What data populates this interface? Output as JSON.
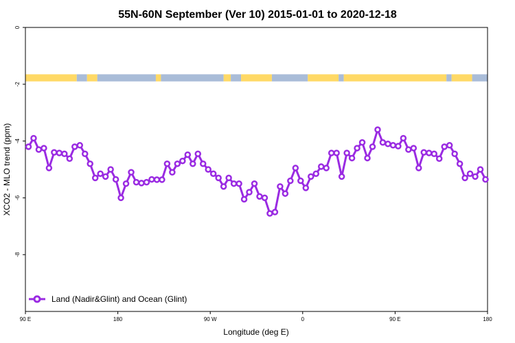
{
  "chart_data": {
    "type": "line",
    "title": "55N-60N September (Ver 10)   2015-01-01 to 2020-12-18",
    "xlabel": "Longitude (deg E)",
    "ylabel": "XCO2 - MLO trend (ppm)",
    "xlim": [
      90,
      540
    ],
    "ylim": [
      -10,
      0
    ],
    "x_ticks": [
      {
        "value": 90,
        "label": "90 E"
      },
      {
        "value": 180,
        "label": "180"
      },
      {
        "value": 270,
        "label": "90 W"
      },
      {
        "value": 360,
        "label": "0"
      },
      {
        "value": 450,
        "label": "90 E"
      },
      {
        "value": 540,
        "label": "180"
      }
    ],
    "y_ticks": [
      {
        "value": 0,
        "label": "0"
      },
      {
        "value": -2,
        "label": "-2"
      },
      {
        "value": -4,
        "label": "-4"
      },
      {
        "value": -6,
        "label": "-6"
      },
      {
        "value": -8,
        "label": "-8"
      }
    ],
    "grid": false,
    "legend_position": "bottom-left",
    "land_ocean_band": {
      "y_range": [
        -1.65,
        -1.9
      ],
      "land_color": "#ffd966",
      "ocean_color": "#a9bcd8",
      "segments": [
        {
          "from": 90,
          "to": 140,
          "kind": "land"
        },
        {
          "from": 140,
          "to": 150,
          "kind": "ocean"
        },
        {
          "from": 150,
          "to": 160,
          "kind": "land"
        },
        {
          "from": 160,
          "to": 217,
          "kind": "ocean"
        },
        {
          "from": 217,
          "to": 222,
          "kind": "land"
        },
        {
          "from": 222,
          "to": 283,
          "kind": "ocean"
        },
        {
          "from": 283,
          "to": 290,
          "kind": "land"
        },
        {
          "from": 290,
          "to": 300,
          "kind": "ocean"
        },
        {
          "from": 300,
          "to": 330,
          "kind": "land"
        },
        {
          "from": 330,
          "to": 365,
          "kind": "ocean"
        },
        {
          "from": 365,
          "to": 395,
          "kind": "land"
        },
        {
          "from": 395,
          "to": 400,
          "kind": "ocean"
        },
        {
          "from": 400,
          "to": 500,
          "kind": "land"
        },
        {
          "from": 500,
          "to": 505,
          "kind": "ocean"
        },
        {
          "from": 505,
          "to": 525,
          "kind": "land"
        },
        {
          "from": 525,
          "to": 540,
          "kind": "ocean"
        }
      ]
    },
    "series": [
      {
        "name": "Land (Nadir&Glint) and Ocean (Glint)",
        "color": "#9a2be2",
        "x": [
          93,
          98,
          103,
          108,
          113,
          118,
          123,
          128,
          133,
          138,
          143,
          148,
          153,
          158,
          163,
          168,
          173,
          178,
          183,
          188,
          193,
          198,
          203,
          208,
          213,
          218,
          223,
          228,
          233,
          238,
          243,
          248,
          253,
          258,
          263,
          268,
          273,
          278,
          283,
          288,
          293,
          298,
          303,
          308,
          313,
          318,
          323,
          328,
          333,
          338,
          343,
          348,
          353,
          358,
          363,
          368,
          373,
          378,
          383,
          388,
          393,
          398,
          403,
          408,
          413,
          418,
          423,
          428,
          433,
          438,
          443,
          448,
          453,
          458,
          463,
          468,
          473,
          478,
          483,
          488,
          493,
          498,
          503,
          508,
          513,
          518,
          523,
          528,
          533,
          538
        ],
        "y": [
          -4.2,
          -3.9,
          -4.3,
          -4.25,
          -4.95,
          -4.4,
          -4.42,
          -4.45,
          -4.62,
          -4.2,
          -4.15,
          -4.45,
          -4.8,
          -5.3,
          -5.15,
          -5.25,
          -5.0,
          -5.35,
          -6.0,
          -5.5,
          -5.1,
          -5.45,
          -5.48,
          -5.45,
          -5.35,
          -5.36,
          -5.36,
          -4.8,
          -5.1,
          -4.8,
          -4.7,
          -4.48,
          -4.8,
          -4.45,
          -4.8,
          -5.0,
          -5.15,
          -5.3,
          -5.6,
          -5.3,
          -5.5,
          -5.5,
          -6.05,
          -5.8,
          -5.5,
          -5.95,
          -6.0,
          -6.55,
          -6.5,
          -5.6,
          -5.85,
          -5.4,
          -4.95,
          -5.4,
          -5.65,
          -5.25,
          -5.15,
          -4.9,
          -4.95,
          -4.42,
          -4.42,
          -5.25,
          -4.42,
          -4.6,
          -4.25,
          -4.05,
          -4.6,
          -4.2,
          -3.6,
          -4.05,
          -4.1,
          -4.15,
          -4.18,
          -3.9,
          -4.3,
          -4.25,
          -4.95,
          -4.4,
          -4.42,
          -4.45,
          -4.62,
          -4.2,
          -4.15,
          -4.45,
          -4.8,
          -5.3,
          -5.15,
          -5.25,
          -5.0,
          -5.35
        ]
      }
    ]
  }
}
